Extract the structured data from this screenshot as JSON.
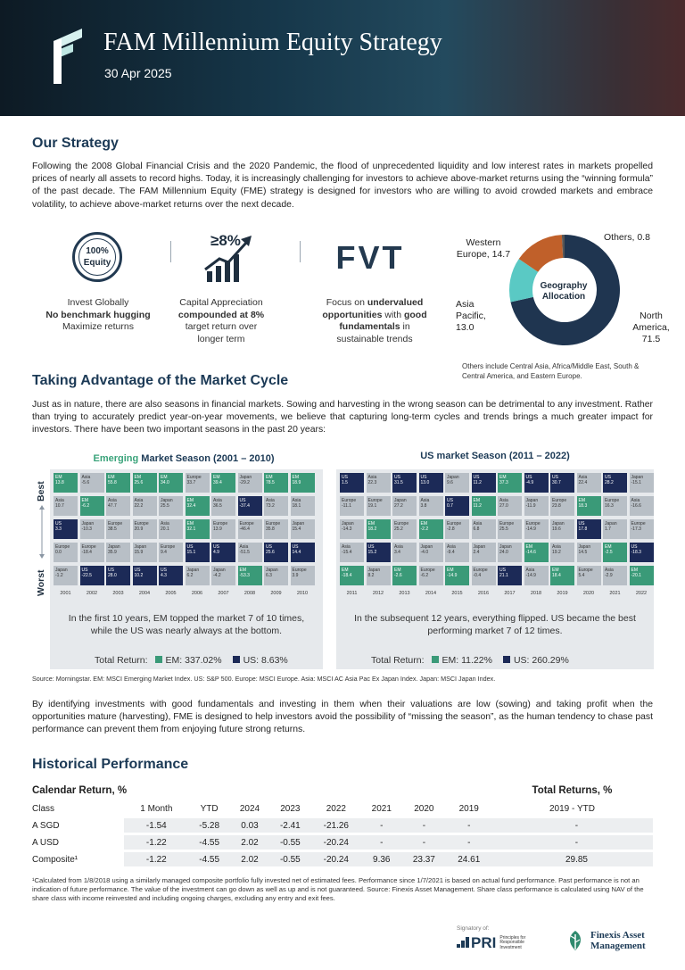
{
  "header": {
    "title": "FAM Millennium Equity Strategy",
    "date": "30 Apr 2025"
  },
  "strategy": {
    "heading": "Our Strategy",
    "body": "Following the 2008 Global Financial Crisis and the 2020 Pandemic, the flood of unprecedented liquidity and low interest rates in markets propelled prices of nearly all assets to record highs. Today, it is increasingly challenging for investors to achieve above-market returns using the “winning formula” of the past decade. The FAM Millennium Equity (FME) strategy is designed for investors who are willing to avoid crowded markets and embrace volatility, to achieve above-market returns over the next decade."
  },
  "features": {
    "equity_badge_1": "100%",
    "equity_badge_2": "Equity",
    "f1_l1": "Invest Globally",
    "f1_l2": "No benchmark hugging",
    "f1_l3": "Maximize returns",
    "growth_badge": "≥8%",
    "f2_l1": "Capital Appreciation",
    "f2_l2": "compounded at 8%",
    "f2_l3": "target return over",
    "f2_l4": "longer term",
    "fvt": "FVT",
    "f3_l1": "Focus on ",
    "f3_b1": "undervalued",
    "f3_b2": "opportunities",
    "f3_l2": " with ",
    "f3_b3": "good",
    "f3_b4": "fundamentals",
    "f3_l3": " in",
    "f3_l4": "sustainable trends"
  },
  "geography": {
    "center_1": "Geography",
    "center_2": "Allocation",
    "label_western_1": "Western",
    "label_western_2": "Europe, 14.7",
    "label_others": "Others, 0.8",
    "label_asia_1": "Asia",
    "label_asia_2": "Pacific,",
    "label_asia_3": "13.0",
    "label_na_1": "North",
    "label_na_2": "America,",
    "label_na_3": "71.5",
    "note": "Others include Central Asia, Africa/Middle East, South & Central America, and Eastern Europe.",
    "colors": {
      "north_america": "#1f3550",
      "asia_pacific": "#5ac9c4",
      "western_europe": "#c0602a",
      "others": "#555555"
    }
  },
  "chart_data": {
    "type": "pie",
    "title": "Geography Allocation",
    "categories": [
      "North America",
      "Asia Pacific",
      "Western Europe",
      "Others"
    ],
    "values": [
      71.5,
      13.0,
      14.7,
      0.8
    ]
  },
  "cycle": {
    "heading": "Taking Advantage of the Market Cycle",
    "body": "Just as in nature, there are also seasons in financial markets. Sowing and harvesting in the wrong season can be detrimental to any investment. Rather than trying to accurately predict year-on-year movements, we believe that capturing long-term cycles and trends brings a much greater impact for investors. There have been two important seasons in the past 20 years:",
    "best": "Best",
    "worst": "Worst",
    "em_title_a": "Emerging",
    "em_title_b": " Market Season ",
    "em_title_c": "(2001 – 2010)",
    "us_title_a": "US",
    "us_title_b": " market Season ",
    "us_title_c": "(2011 – 2022)",
    "em_caption_1": "In the first 10 years, EM topped the market 7 of 10 times,",
    "em_caption_2": "while the US was nearly always at the bottom.",
    "us_caption_1": "In the subsequent 12 years, everything flipped. US became the best",
    "us_caption_2": "performing market 7 of 12 times.",
    "tr_label": "Total Return:",
    "em_tr_em": "EM: 337.02%",
    "em_tr_us": "US: 8.63%",
    "us_tr_em": "EM: 11.22%",
    "us_tr_us": "US: 260.29%",
    "em_years": [
      "2001",
      "2002",
      "2003",
      "2004",
      "2005",
      "2006",
      "2007",
      "2008",
      "2009",
      "2010"
    ],
    "us_years": [
      "2011",
      "2012",
      "2013",
      "2014",
      "2015",
      "2016",
      "2017",
      "2018",
      "2019",
      "2020",
      "2021",
      "2022"
    ],
    "em_grid": [
      [
        [
          "EM",
          "13.8",
          "em"
        ],
        [
          "Asia",
          "-5.6",
          ""
        ],
        [
          "EM",
          "55.8",
          "em"
        ],
        [
          "EM",
          "25.6",
          "em"
        ],
        [
          "EM",
          "34.0",
          "em"
        ],
        [
          "Europe",
          "33.7",
          ""
        ],
        [
          "EM",
          "39.4",
          "em"
        ],
        [
          "Japan",
          "-29.2",
          ""
        ],
        [
          "EM",
          "78.5",
          "em"
        ],
        [
          "EM",
          "18.9",
          "em"
        ]
      ],
      [
        [
          "Asia",
          "10.7",
          ""
        ],
        [
          "EM",
          "-6.2",
          "em"
        ],
        [
          "Asia",
          "47.7",
          ""
        ],
        [
          "Asia",
          "22.2",
          ""
        ],
        [
          "Japan",
          "25.5",
          ""
        ],
        [
          "EM",
          "32.4",
          "em"
        ],
        [
          "Asia",
          "36.5",
          ""
        ],
        [
          "US",
          "-37.4",
          "us"
        ],
        [
          "Asia",
          "73.2",
          ""
        ],
        [
          "Asia",
          "18.1",
          ""
        ]
      ],
      [
        [
          "US",
          "3.3",
          "us"
        ],
        [
          "Japan",
          "-10.3",
          ""
        ],
        [
          "Europe",
          "38.5",
          ""
        ],
        [
          "Europe",
          "20.9",
          ""
        ],
        [
          "Asia",
          "20.1",
          ""
        ],
        [
          "EM",
          "32.1",
          "em"
        ],
        [
          "Europe",
          "13.9",
          ""
        ],
        [
          "Europe",
          "-46.4",
          ""
        ],
        [
          "Europe",
          "35.8",
          ""
        ],
        [
          "Japan",
          "15.4",
          ""
        ]
      ],
      [
        [
          "Europe",
          "0.0",
          ""
        ],
        [
          "Europe",
          "-18.4",
          ""
        ],
        [
          "Japan",
          "35.9",
          ""
        ],
        [
          "Japan",
          "15.9",
          ""
        ],
        [
          "Europe",
          "9.4",
          ""
        ],
        [
          "US",
          "15.1",
          "us"
        ],
        [
          "US",
          "4.9",
          "us"
        ],
        [
          "Asia",
          "-51.5",
          ""
        ],
        [
          "US",
          "25.6",
          "us"
        ],
        [
          "US",
          "14.4",
          "us"
        ]
      ],
      [
        [
          "Japan",
          "-1.2",
          ""
        ],
        [
          "US",
          "-22.5",
          "us"
        ],
        [
          "US",
          "28.0",
          "us"
        ],
        [
          "US",
          "10.2",
          "us"
        ],
        [
          "US",
          "4.3",
          "us"
        ],
        [
          "Japan",
          "6.2",
          ""
        ],
        [
          "Japan",
          "-4.2",
          ""
        ],
        [
          "EM",
          "-53.3",
          "em"
        ],
        [
          "Japan",
          "6.3",
          ""
        ],
        [
          "Europe",
          "3.9",
          ""
        ]
      ]
    ],
    "us_grid": [
      [
        [
          "US",
          "1.5",
          "us"
        ],
        [
          "Asia",
          "22.3",
          ""
        ],
        [
          "US",
          "31.5",
          "us"
        ],
        [
          "US",
          "13.0",
          "us"
        ],
        [
          "Japan",
          "9.6",
          ""
        ],
        [
          "US",
          "11.2",
          "us"
        ],
        [
          "EM",
          "37.3",
          "em"
        ],
        [
          "US",
          "-4.9",
          "us"
        ],
        [
          "US",
          "30.7",
          "us"
        ],
        [
          "Asia",
          "22.4",
          ""
        ],
        [
          "US",
          "28.2",
          "us"
        ],
        [
          "Japan",
          "-15.1",
          ""
        ]
      ],
      [
        [
          "Europe",
          "-11.1",
          ""
        ],
        [
          "Europe",
          "19.1",
          ""
        ],
        [
          "Japan",
          "27.2",
          ""
        ],
        [
          "Asia",
          "3.8",
          ""
        ],
        [
          "US",
          "0.7",
          "us"
        ],
        [
          "EM",
          "11.2",
          "em"
        ],
        [
          "Asia",
          "27.0",
          ""
        ],
        [
          "Japan",
          "-11.9",
          ""
        ],
        [
          "Europe",
          "23.8",
          ""
        ],
        [
          "EM",
          "18.3",
          "em"
        ],
        [
          "Europe",
          "16.3",
          ""
        ],
        [
          "Asia",
          "-16.6",
          ""
        ]
      ],
      [
        [
          "Japan",
          "-14.3",
          ""
        ],
        [
          "EM",
          "18.2",
          "em"
        ],
        [
          "Europe",
          "25.2",
          ""
        ],
        [
          "EM",
          "-2.2",
          "em"
        ],
        [
          "Europe",
          "-2.8",
          ""
        ],
        [
          "Asia",
          "6.8",
          ""
        ],
        [
          "Europe",
          "25.5",
          ""
        ],
        [
          "Europe",
          "-14.9",
          ""
        ],
        [
          "Japan",
          "19.6",
          ""
        ],
        [
          "US",
          "17.8",
          "us"
        ],
        [
          "Japan",
          "1.7",
          ""
        ],
        [
          "Europe",
          "-17.3",
          ""
        ]
      ],
      [
        [
          "Asia",
          "-15.4",
          ""
        ],
        [
          "US",
          "15.2",
          "us"
        ],
        [
          "Asia",
          "3.4",
          ""
        ],
        [
          "Japan",
          "-4.0",
          ""
        ],
        [
          "Asia",
          "-9.4",
          ""
        ],
        [
          "Japan",
          "2.4",
          ""
        ],
        [
          "Japan",
          "24.0",
          ""
        ],
        [
          "EM",
          "-14.6",
          "em"
        ],
        [
          "Asia",
          "19.2",
          ""
        ],
        [
          "Japan",
          "14.5",
          ""
        ],
        [
          "EM",
          "-2.5",
          "em"
        ],
        [
          "US",
          "-18.3",
          "us"
        ]
      ],
      [
        [
          "EM",
          "-18.4",
          "em"
        ],
        [
          "Japan",
          "8.2",
          ""
        ],
        [
          "EM",
          "-2.6",
          "em"
        ],
        [
          "Europe",
          "-6.2",
          ""
        ],
        [
          "EM",
          "-14.9",
          "em"
        ],
        [
          "Europe",
          "-0.4",
          ""
        ],
        [
          "US",
          "21.1",
          "us"
        ],
        [
          "Asia",
          "-14.9",
          ""
        ],
        [
          "EM",
          "18.4",
          "em"
        ],
        [
          "Europe",
          "5.4",
          ""
        ],
        [
          "Asia",
          "-2.9",
          ""
        ],
        [
          "EM",
          "-20.1",
          "em"
        ]
      ]
    ],
    "source": "Source: Morningstar. EM: MSCI Emerging Market Index. US: S&P 500. Europe: MSCI Europe. Asia: MSCI AC Asia Pac Ex Japan Index. Japan: MSCI Japan Index.",
    "body2": "By identifying investments with good fundamentals and investing in them when their valuations are low (sowing) and taking profit when the opportunities mature (harvesting), FME is designed to help investors avoid the possibility of “missing the season”, as the human tendency to chase past performance can prevent them from enjoying future strong returns."
  },
  "performance": {
    "heading": "Historical Performance",
    "cal_heading": "Calendar Return, %",
    "tot_heading": "Total Returns, %",
    "columns": [
      "Class",
      "1 Month",
      "YTD",
      "2024",
      "2023",
      "2022",
      "2021",
      "2020",
      "2019",
      "2019 - YTD"
    ],
    "rows": [
      [
        "A SGD",
        "-1.54",
        "-5.28",
        "0.03",
        "-2.41",
        "-21.26",
        "-",
        "-",
        "-",
        "-"
      ],
      [
        "A USD",
        "-1.22",
        "-4.55",
        "2.02",
        "-0.55",
        "-20.24",
        "-",
        "-",
        "-",
        "-"
      ],
      [
        "Composite¹",
        "-1.22",
        "-4.55",
        "2.02",
        "-0.55",
        "-20.24",
        "9.36",
        "23.37",
        "24.61",
        "29.85"
      ]
    ],
    "footnote": "¹Calculated from 1/8/2018 using a similarly managed composite portfolio fully invested net of estimated fees. Performance since 1/7/2021 is based on actual fund performance. Past performance is not an indication of future performance. The value of the investment can go down as well as up and is not guaranteed. Source: Finexis Asset Management. Share class performance is calculated using NAV of the share class with income reinvested and including ongoing charges, excluding any entry and exit fees."
  },
  "footer": {
    "pri_signatory": "Signatory of:",
    "pri": "PRI",
    "pri_sub_1": "Principles for",
    "pri_sub_2": "Responsible",
    "pri_sub_3": "Investment",
    "finexis_1": "Finexis Asset",
    "finexis_2": "Management"
  }
}
